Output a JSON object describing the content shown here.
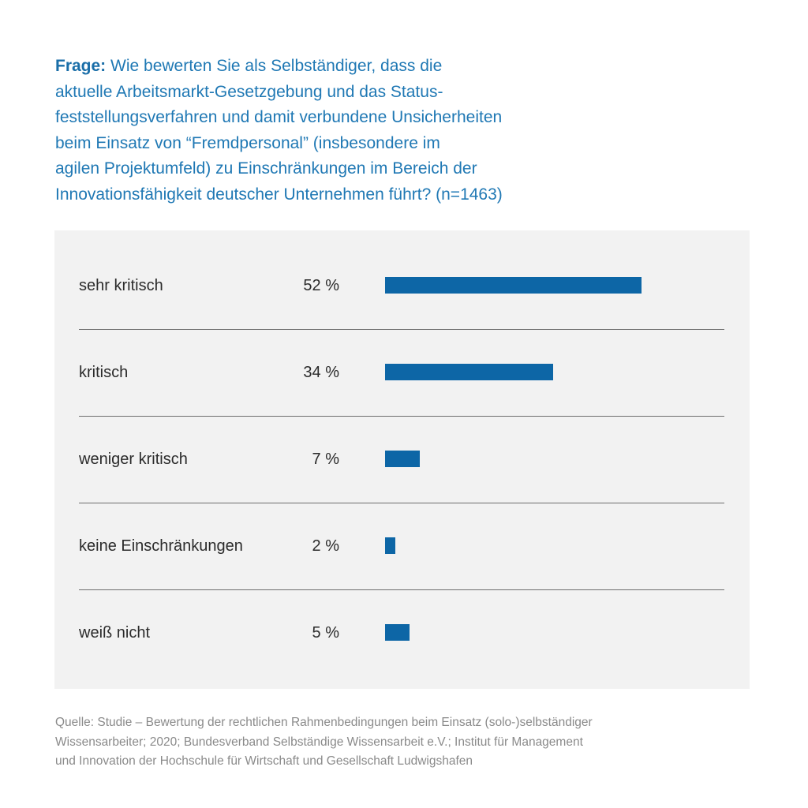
{
  "question": {
    "label": "Frage:",
    "lines": [
      " Wie bewerten Sie als Selbständiger, dass die",
      "aktuelle Arbeitsmarkt-Gesetzgebung und das Status-",
      "feststellungsverfahren und damit verbundene Unsicherheiten",
      "beim Einsatz von “Fremdpersonal” (insbesondere im",
      "agilen Projektumfeld) zu Einschränkungen im Bereich der",
      "Innovationsfähigkeit deutscher Unternehmen führt? (n=1463)"
    ]
  },
  "chart_data": {
    "type": "bar",
    "orientation": "horizontal",
    "categories": [
      "sehr kritisch",
      "kritisch",
      "weniger kritisch",
      "keine Einschränkungen",
      "weiß nicht"
    ],
    "values": [
      52,
      34,
      7,
      2,
      5
    ],
    "value_labels": [
      "52 %",
      "34 %",
      "7 %",
      "2 %",
      "5 %"
    ],
    "unit": "%",
    "bar_color": "#0d66a6",
    "background_color": "#f2f2f2"
  },
  "source": {
    "lines": [
      "Quelle: Studie – Bewertung der rechtlichen Rahmenbedingungen beim Einsatz (solo-)selbständiger",
      "Wissensarbeiter; 2020; Bundesverband Selbständige Wissensarbeit e.V.; Institut für Management",
      "und Innovation der Hochschule für Wirtschaft und Gesellschaft Ludwigshafen"
    ]
  }
}
